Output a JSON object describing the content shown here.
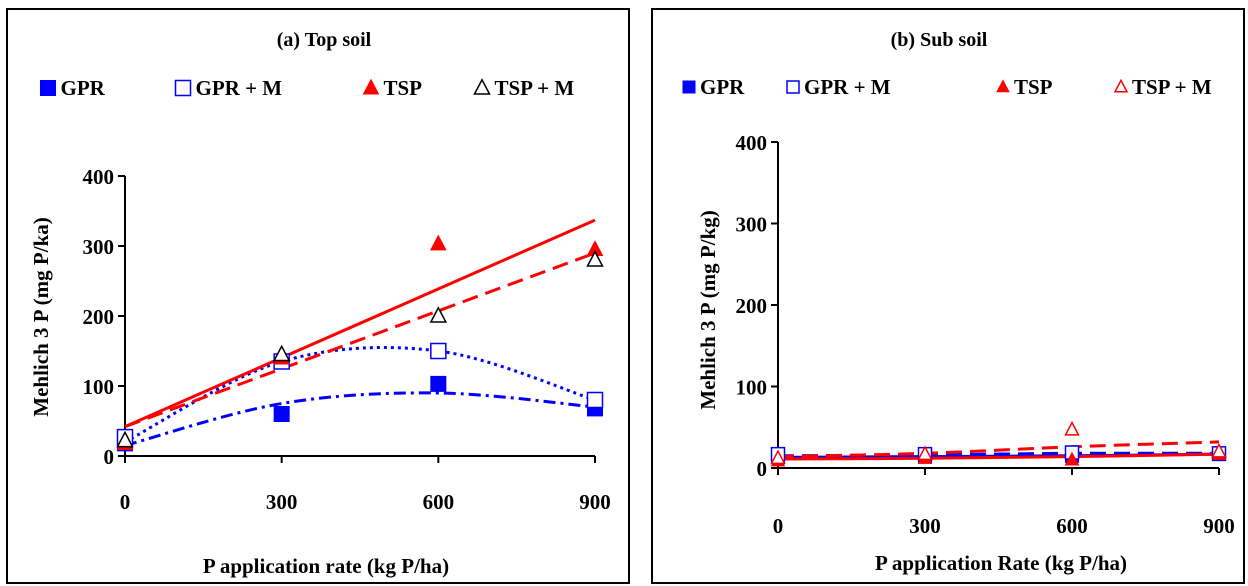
{
  "chart_data": [
    {
      "type": "scatter",
      "title": "(a)  Top soil",
      "xlabel": "P application rate (kg P/ha)",
      "ylabel": "Mehlich 3 P (mg P/ka)",
      "xlim": [
        0,
        900
      ],
      "ylim": [
        0,
        400
      ],
      "xticks": [
        "0",
        "300",
        "600",
        "900"
      ],
      "yticks": [
        "0",
        "100",
        "200",
        "300",
        "400"
      ],
      "legend_position": "top",
      "grid": false,
      "series": [
        {
          "name": "GPR",
          "marker": "square-filled",
          "color": "#0000ff",
          "x": [
            0,
            300,
            600,
            900
          ],
          "y": [
            18,
            60,
            103,
            68
          ],
          "trend": {
            "style": "dash-dot",
            "y": [
              15,
              75,
              90,
              70
            ]
          }
        },
        {
          "name": "GPR + M",
          "marker": "square-open",
          "color": "#0000ff",
          "x": [
            0,
            300,
            600,
            900
          ],
          "y": [
            27,
            135,
            150,
            80
          ],
          "trend": {
            "style": "dotted",
            "y": [
              20,
              135,
              150,
              80
            ]
          }
        },
        {
          "name": "TSP",
          "marker": "triangle-filled",
          "color": "#ff0000",
          "x": [
            0,
            300,
            600,
            900
          ],
          "y": [
            18,
            140,
            303,
            295
          ],
          "trend": {
            "style": "solid",
            "y": [
              42,
              337
            ]
          }
        },
        {
          "name": "TSP + M",
          "marker": "triangle-open",
          "color": "#000000",
          "x": [
            0,
            300,
            600,
            900
          ],
          "y": [
            22,
            145,
            200,
            280
          ],
          "trend": {
            "style": "dashed",
            "color": "#ff0000",
            "y": [
              42,
              290
            ]
          }
        }
      ]
    },
    {
      "type": "scatter",
      "title": "(b) Sub soil",
      "xlabel": "P application Rate (kg P/ha)",
      "ylabel": "Mehlich 3 P (mg P/kg)",
      "xlim": [
        0,
        900
      ],
      "ylim": [
        0,
        400
      ],
      "xticks": [
        "0",
        "300",
        "600",
        "900"
      ],
      "yticks": [
        "0",
        "100",
        "200",
        "300",
        "400"
      ],
      "legend_position": "top",
      "grid": false,
      "series": [
        {
          "name": "GPR",
          "marker": "square-filled",
          "color": "#0000ff",
          "x": [
            0,
            300,
            600,
            900
          ],
          "y": [
            14,
            14,
            15,
            17
          ],
          "trend": {
            "style": "solid",
            "y": [
              13,
              14,
              15,
              17
            ]
          }
        },
        {
          "name": "GPR + M",
          "marker": "square-open",
          "color": "#0000ff",
          "x": [
            0,
            300,
            600,
            900
          ],
          "y": [
            17,
            17,
            19,
            18
          ],
          "trend": {
            "style": "dashed",
            "y": [
              15,
              16,
              18,
              18
            ]
          }
        },
        {
          "name": "TSP",
          "marker": "triangle-filled",
          "color": "#ff0000",
          "x": [
            0,
            300,
            600,
            900
          ],
          "y": [
            9,
            12,
            10,
            17
          ],
          "trend": {
            "style": "solid",
            "y": [
              11,
              12,
              14,
              17
            ]
          }
        },
        {
          "name": "TSP + M",
          "marker": "triangle-open",
          "color": "#ff0000",
          "x": [
            0,
            300,
            600,
            900
          ],
          "y": [
            12,
            17,
            47,
            20
          ],
          "trend": {
            "style": "dashed",
            "y": [
              14,
              18,
              26,
              32
            ]
          }
        }
      ]
    }
  ]
}
